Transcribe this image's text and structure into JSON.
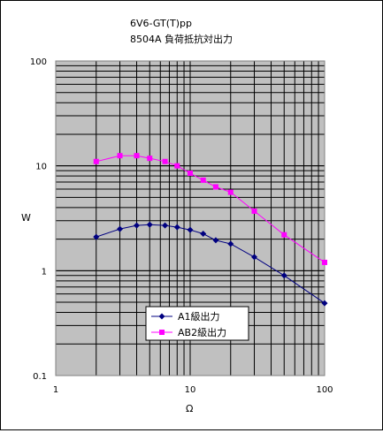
{
  "colors": {
    "plot_bg": "#c0c0c0",
    "grid": "#000000",
    "A1": "#000080",
    "AB2": "#ff00ff"
  },
  "chart_data": {
    "type": "line",
    "title_line1": "6V6-GT(T)pp",
    "title_line2": "8504A 負荷抵抗対出力",
    "xlabel": "Ω",
    "ylabel": "W",
    "xscale": "log",
    "yscale": "log",
    "xlim": [
      1,
      100
    ],
    "ylim": [
      0.1,
      100
    ],
    "x_ticks": [
      "1",
      "10",
      "100"
    ],
    "y_ticks": [
      "0.1",
      "1",
      "10",
      "100"
    ],
    "grid": true,
    "legend_position": "lower-center",
    "series": [
      {
        "name": "A1級出力",
        "marker": "diamond",
        "color": "#000080",
        "x": [
          2,
          3,
          4,
          5,
          6.5,
          8,
          10,
          12.5,
          15.5,
          20,
          30,
          50,
          100
        ],
        "y": [
          2.1,
          2.5,
          2.7,
          2.75,
          2.7,
          2.6,
          2.45,
          2.25,
          1.95,
          1.8,
          1.35,
          0.9,
          0.49
        ]
      },
      {
        "name": "AB2級出力",
        "marker": "square",
        "color": "#ff00ff",
        "x": [
          2,
          3,
          4,
          5,
          6.5,
          8,
          10,
          12.5,
          15.5,
          20,
          30,
          50,
          100
        ],
        "y": [
          11,
          12.5,
          12.5,
          11.8,
          11,
          10,
          8.5,
          7.3,
          6.3,
          5.6,
          3.7,
          2.2,
          1.2
        ]
      }
    ]
  }
}
